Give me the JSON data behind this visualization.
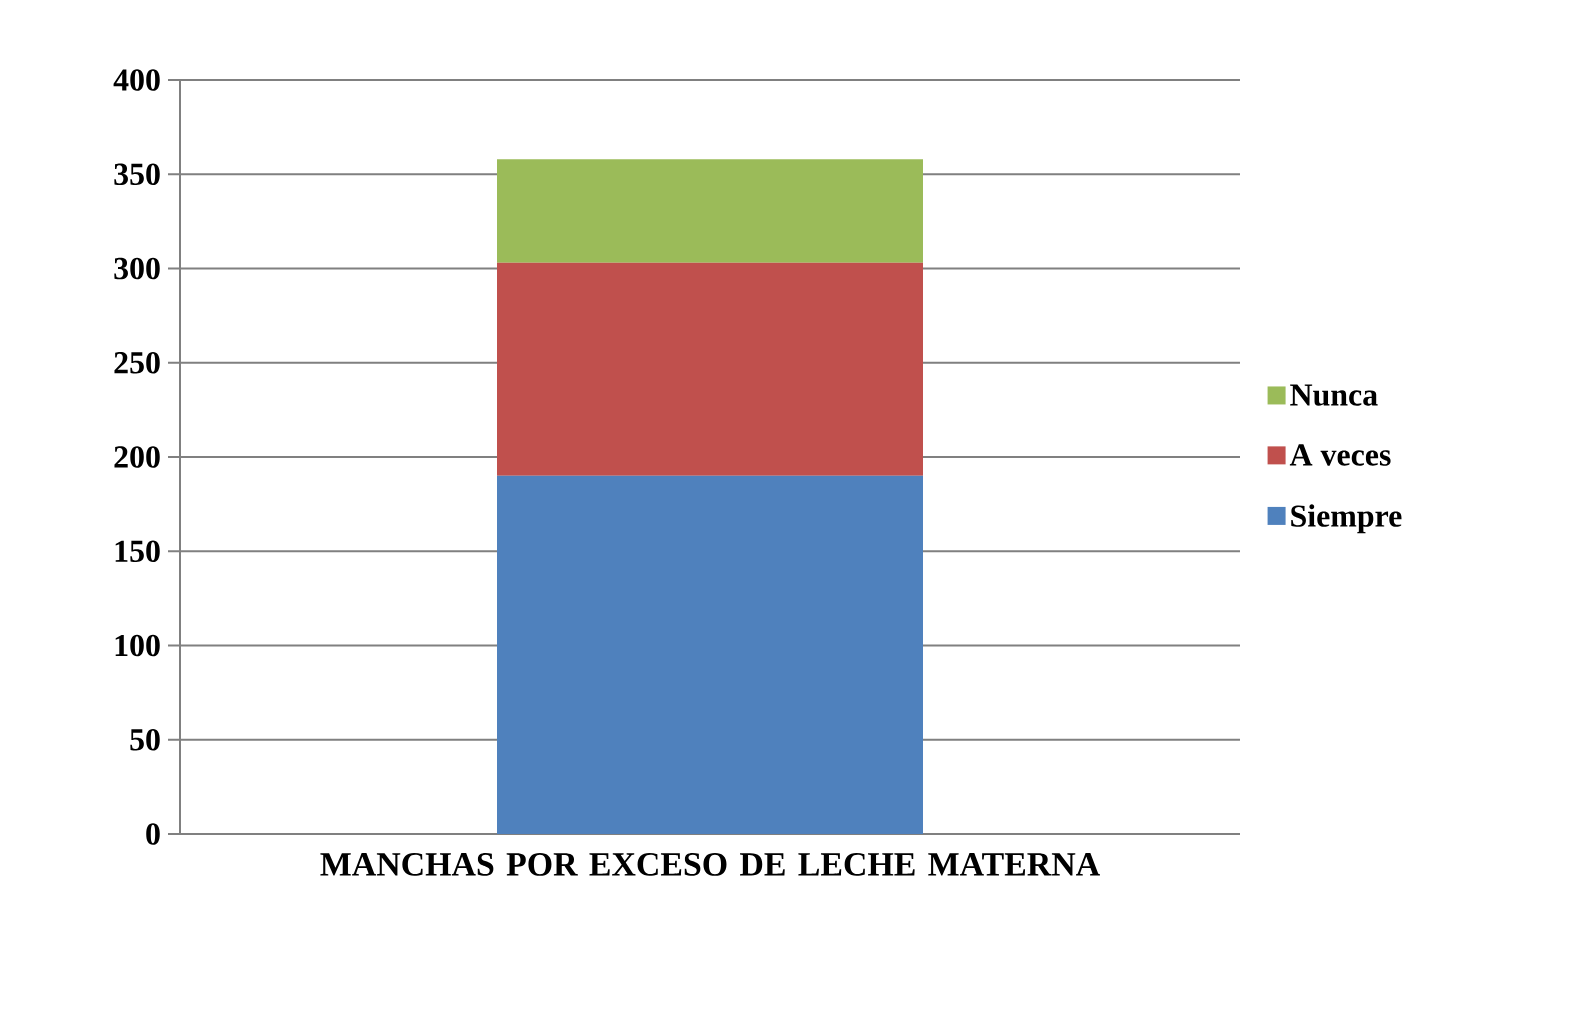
{
  "chart_data": {
    "type": "bar",
    "stacked": true,
    "categories": [
      "MANCHAS POR EXCESO DE LECHE MATERNA"
    ],
    "series": [
      {
        "name": "Siempre",
        "color": "#4f81bd",
        "values": [
          190
        ]
      },
      {
        "name": "A veces",
        "color": "#c0504d",
        "values": [
          113
        ]
      },
      {
        "name": "Nunca",
        "color": "#9bbb59",
        "values": [
          55
        ]
      }
    ],
    "ylim": [
      0,
      400
    ],
    "yticks": [
      0,
      50,
      100,
      150,
      200,
      250,
      300,
      350,
      400
    ],
    "grid": "y",
    "legend": "right"
  }
}
